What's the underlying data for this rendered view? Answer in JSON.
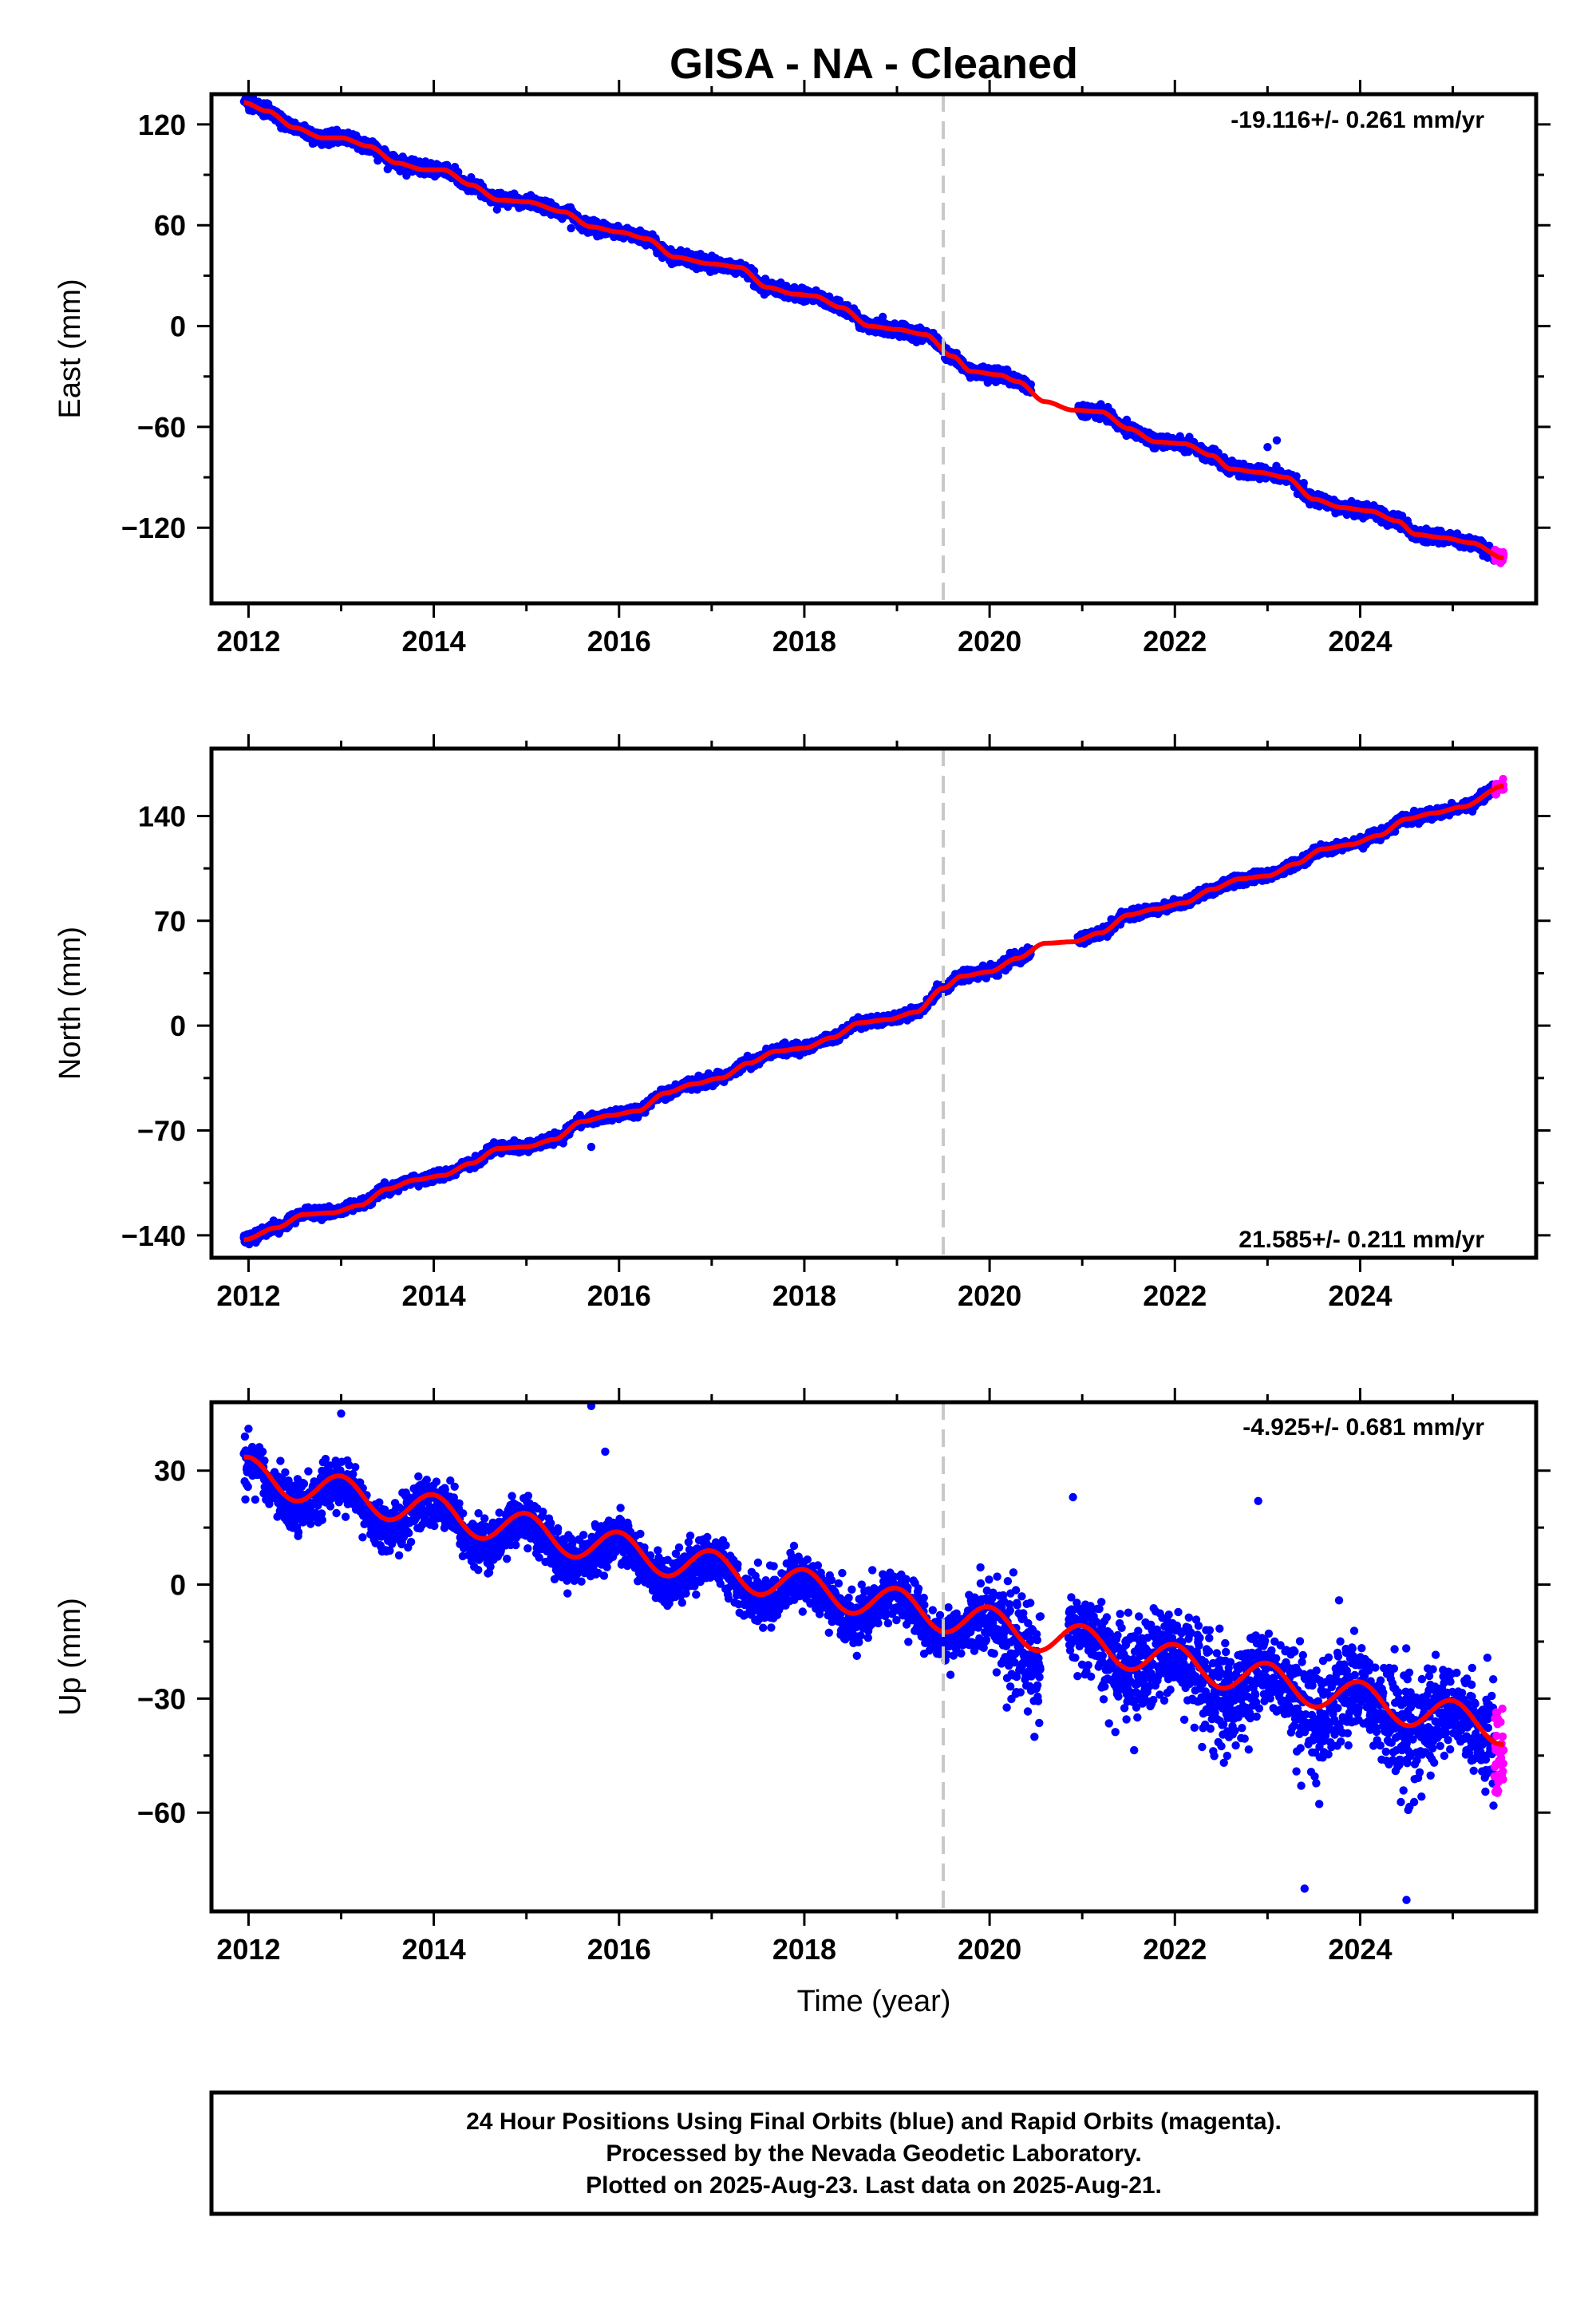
{
  "title": "GISA  - NA - Cleaned",
  "colors": {
    "final_orbits": "#0000ff",
    "rapid_orbits": "#ff00ff",
    "fit": "#ff0000",
    "marker": "#c8c8c8"
  },
  "x_axis_label": "Time (year)",
  "footer": {
    "line1": "24 Hour Positions Using Final Orbits (blue) and Rapid Orbits (magenta).",
    "line2": "Processed by the Nevada Geodetic Laboratory.",
    "line3": "Plotted on 2025-Aug-23. Last data on 2025-Aug-21."
  },
  "chart_data": [
    {
      "type": "scatter",
      "name": "east",
      "ylabel": "East (mm)",
      "rate_text": "-19.116+/- 0.261 mm/yr",
      "xlim": [
        2011.6,
        2025.9
      ],
      "ylim": [
        -165,
        138
      ],
      "xticks": [
        2012,
        2014,
        2016,
        2018,
        2020,
        2022,
        2024
      ],
      "yticks": [
        120,
        60,
        0,
        -60,
        -120
      ],
      "ytick_labels": [
        "120",
        "60",
        "0",
        "−60",
        "−120"
      ],
      "marker_year": 2019.5,
      "rate_mm_yr": -19.116,
      "intercept_at_2012": 127,
      "seasonal_amplitude": 4.5,
      "noise": 2.6,
      "data_start": 2011.95,
      "data_end": 2025.55,
      "rapid_start": 2025.45,
      "gap": [
        2020.45,
        2020.95
      ],
      "fit_points": [
        [
          2011.95,
          133
        ],
        [
          2012.2,
          128
        ],
        [
          2012.5,
          118
        ],
        [
          2012.8,
          112
        ],
        [
          2013.0,
          112
        ],
        [
          2013.3,
          107
        ],
        [
          2013.6,
          97
        ],
        [
          2013.9,
          93
        ],
        [
          2014.1,
          93
        ],
        [
          2014.4,
          84
        ],
        [
          2014.7,
          75
        ],
        [
          2015.0,
          74
        ],
        [
          2015.4,
          68
        ],
        [
          2015.7,
          59
        ],
        [
          2016.0,
          56
        ],
        [
          2016.3,
          52
        ],
        [
          2016.6,
          41
        ],
        [
          2017.0,
          37
        ],
        [
          2017.3,
          35
        ],
        [
          2017.6,
          23
        ],
        [
          2017.9,
          19
        ],
        [
          2018.1,
          18
        ],
        [
          2018.4,
          11
        ],
        [
          2018.7,
          0
        ],
        [
          2019.0,
          -2
        ],
        [
          2019.3,
          -5
        ],
        [
          2019.6,
          -18
        ],
        [
          2019.8,
          -27
        ],
        [
          2020.1,
          -29
        ],
        [
          2020.3,
          -33
        ],
        [
          2020.6,
          -45
        ],
        [
          2020.9,
          -50
        ],
        [
          2021.2,
          -51
        ],
        [
          2021.5,
          -61
        ],
        [
          2021.8,
          -69
        ],
        [
          2022.1,
          -70
        ],
        [
          2022.4,
          -77
        ],
        [
          2022.6,
          -85
        ],
        [
          2022.9,
          -87
        ],
        [
          2023.2,
          -90
        ],
        [
          2023.5,
          -103
        ],
        [
          2023.8,
          -108
        ],
        [
          2024.1,
          -110
        ],
        [
          2024.4,
          -116
        ],
        [
          2024.6,
          -124
        ],
        [
          2024.9,
          -126
        ],
        [
          2025.2,
          -129
        ],
        [
          2025.55,
          -138
        ]
      ],
      "outliers": [
        [
          2023.1,
          -68
        ],
        [
          2023.0,
          -72
        ]
      ]
    },
    {
      "type": "scatter",
      "name": "north",
      "ylabel": "North (mm)",
      "rate_text": "21.585+/- 0.211 mm/yr",
      "xlim": [
        2011.6,
        2025.9
      ],
      "ylim": [
        -155,
        185
      ],
      "xticks": [
        2012,
        2014,
        2016,
        2018,
        2020,
        2022,
        2024
      ],
      "yticks": [
        140,
        70,
        0,
        -70,
        -140
      ],
      "ytick_labels": [
        "140",
        "70",
        "0",
        "−70",
        "−140"
      ],
      "marker_year": 2019.5,
      "rate_mm_yr": 21.585,
      "noise": 2.4,
      "data_start": 2011.95,
      "data_end": 2025.55,
      "rapid_start": 2025.45,
      "gap": [
        2020.45,
        2020.95
      ],
      "fit_points": [
        [
          2011.95,
          -143
        ],
        [
          2012.3,
          -135
        ],
        [
          2012.6,
          -126
        ],
        [
          2012.9,
          -125
        ],
        [
          2013.2,
          -120
        ],
        [
          2013.5,
          -109
        ],
        [
          2013.8,
          -103
        ],
        [
          2014.1,
          -100
        ],
        [
          2014.4,
          -92
        ],
        [
          2014.7,
          -82
        ],
        [
          2015.0,
          -81
        ],
        [
          2015.3,
          -76
        ],
        [
          2015.6,
          -64
        ],
        [
          2015.9,
          -60
        ],
        [
          2016.2,
          -57
        ],
        [
          2016.5,
          -45
        ],
        [
          2016.8,
          -39
        ],
        [
          2017.1,
          -35
        ],
        [
          2017.4,
          -25
        ],
        [
          2017.7,
          -17
        ],
        [
          2018.0,
          -15
        ],
        [
          2018.3,
          -8
        ],
        [
          2018.6,
          2
        ],
        [
          2018.9,
          4
        ],
        [
          2019.2,
          9
        ],
        [
          2019.5,
          25
        ],
        [
          2019.7,
          33
        ],
        [
          2020.0,
          36
        ],
        [
          2020.3,
          45
        ],
        [
          2020.6,
          55
        ],
        [
          2020.9,
          56
        ],
        [
          2021.2,
          62
        ],
        [
          2021.5,
          74
        ],
        [
          2021.8,
          78
        ],
        [
          2022.1,
          82
        ],
        [
          2022.4,
          91
        ],
        [
          2022.7,
          98
        ],
        [
          2023.0,
          100
        ],
        [
          2023.3,
          108
        ],
        [
          2023.6,
          118
        ],
        [
          2023.9,
          121
        ],
        [
          2024.2,
          127
        ],
        [
          2024.5,
          138
        ],
        [
          2024.8,
          142
        ],
        [
          2025.1,
          146
        ],
        [
          2025.55,
          160
        ]
      ],
      "outliers": [
        [
          2015.7,
          -81
        ]
      ]
    },
    {
      "type": "scatter",
      "name": "up",
      "ylabel": "Up (mm)",
      "rate_text": "-4.925+/- 0.681 mm/yr",
      "xlim": [
        2011.6,
        2025.9
      ],
      "ylim": [
        -86,
        48
      ],
      "xticks": [
        2012,
        2014,
        2016,
        2018,
        2020,
        2022,
        2024
      ],
      "yticks": [
        30,
        0,
        -30,
        -60
      ],
      "ytick_labels": [
        "30",
        "0",
        "−30",
        "−60"
      ],
      "marker_year": 2019.5,
      "rate_mm_yr": -4.925,
      "intercept_at_2012": 26,
      "seasonal_amplitude": 4.5,
      "seasonal_peak_phase": 0.0,
      "noise": 4.5,
      "noise_after_2020": 11,
      "data_start": 2011.95,
      "data_end": 2025.55,
      "rapid_start": 2025.45,
      "gap": [
        2020.55,
        2020.85
      ],
      "outliers": [
        [
          2012.0,
          41
        ],
        [
          2013.0,
          45
        ],
        [
          2015.7,
          47
        ],
        [
          2015.85,
          35
        ],
        [
          2022.9,
          22
        ],
        [
          2020.9,
          23
        ],
        [
          2024.5,
          -83
        ],
        [
          2023.4,
          -80
        ]
      ]
    }
  ]
}
